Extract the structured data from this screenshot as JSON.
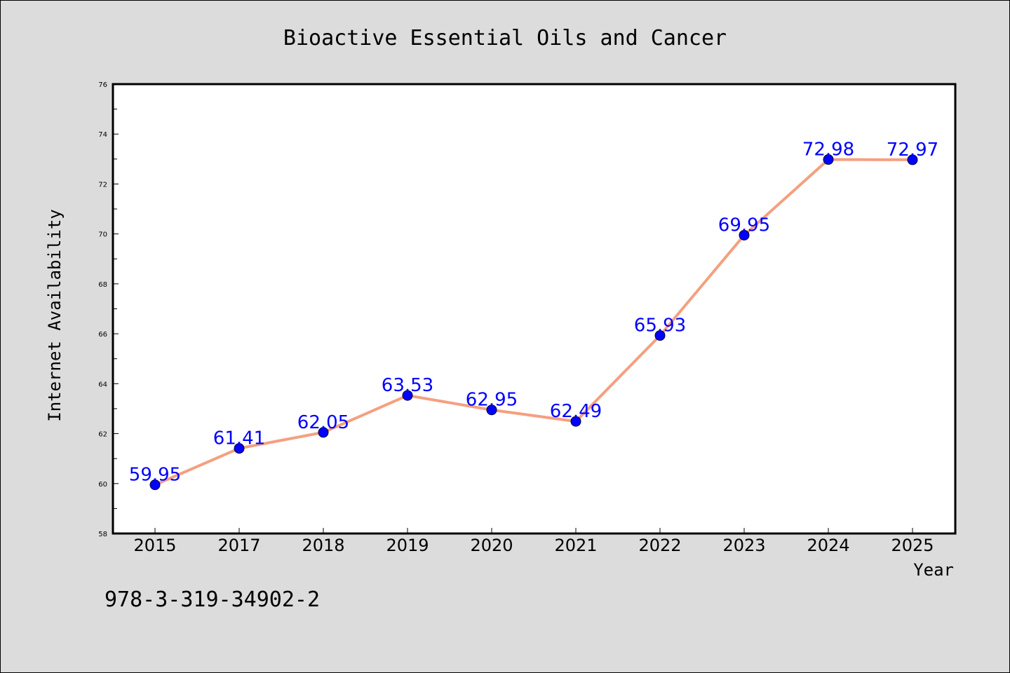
{
  "isbn_text": "978-3-319-34902-2",
  "chart_data": {
    "type": "line",
    "title": "Bioactive Essential Oils and Cancer",
    "xlabel": "Year",
    "ylabel": "Internet Availability",
    "categories": [
      "2015",
      "2017",
      "2018",
      "2019",
      "2020",
      "2021",
      "2022",
      "2023",
      "2024",
      "2025"
    ],
    "values": [
      59.95,
      61.41,
      62.05,
      63.53,
      62.95,
      62.49,
      65.93,
      69.95,
      72.98,
      72.97
    ],
    "data_labels": [
      "59.95",
      "61.41",
      "62.05",
      "63.53",
      "62.95",
      "62.49",
      "65.93",
      "69.95",
      "72.98",
      "72.97"
    ],
    "ylim": [
      58,
      76
    ],
    "yticks": [
      "58",
      "60",
      "62",
      "64",
      "66",
      "68",
      "70",
      "72",
      "74",
      "76"
    ],
    "grid": false,
    "legend": "none",
    "colors": {
      "line": "#f4a080",
      "marker": "#0000ff",
      "label": "#0000ff",
      "background": "#dcdcdc",
      "plot_background": "#ffffff"
    }
  }
}
